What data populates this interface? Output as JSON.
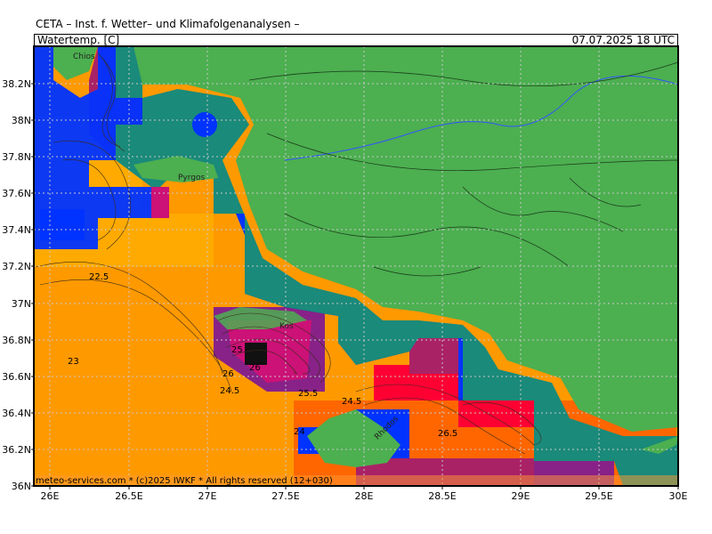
{
  "header": {
    "title": "CETA – Inst. f. Wetter– und Klimafolgenanalysen –",
    "parameter": "Watertemp. [C]",
    "valid_time": "07.07.2025  18 UTC"
  },
  "footer": {
    "copyright": "meteo-services.com * (c)2025 IWKF * All rights reserved (12+030)"
  },
  "map": {
    "lon_labels": [
      "26E",
      "26.5E",
      "27E",
      "27.5E",
      "28E",
      "28.5E",
      "29E",
      "29.5E",
      "30E"
    ],
    "lat_labels": [
      "38.2N",
      "38N",
      "37.8N",
      "37.6N",
      "37.4N",
      "37.2N",
      "37N",
      "36.8N",
      "36.6N",
      "36.4N",
      "36.2N",
      "36N"
    ],
    "places": [
      "Chios",
      "Pyrgos",
      "Kos",
      "Rhodos"
    ],
    "contour_labels": [
      "22.5",
      "23",
      "25",
      "26",
      "24.5",
      "25.5",
      "24.5",
      "24",
      "26.5",
      "26"
    ],
    "colors": {
      "land": "#4caf50",
      "coast_dark": "#2e8b3e",
      "coast_teal": "#1a8a7a",
      "cold_blue": "#0033ff",
      "sea_orange": "#ff9900",
      "sea_dark_orange": "#ff6600",
      "sea_light_orange": "#ffaa00",
      "hot_red": "#ff0033",
      "hot_magenta": "#cc1177",
      "hot_purple": "#882288",
      "grid": "#c8c8c8",
      "river": "#3355ff"
    }
  }
}
